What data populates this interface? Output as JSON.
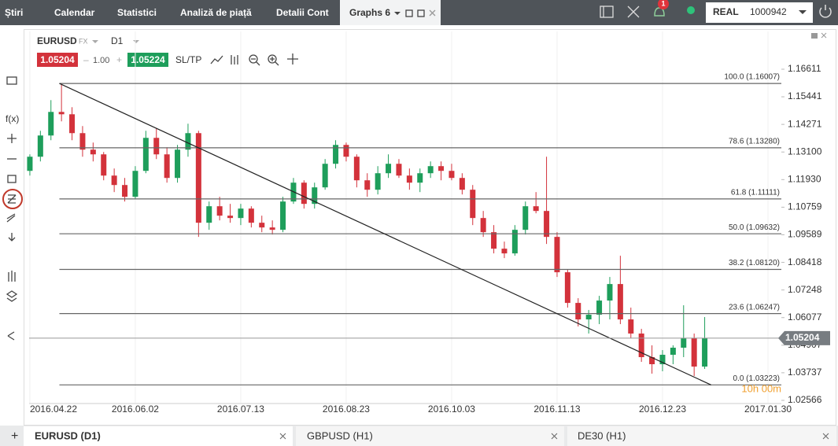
{
  "top_nav": {
    "tabs": [
      "Știri",
      "Calendar",
      "Statistici",
      "Analiză de piață",
      "Detalii Cont"
    ],
    "active_tab": "Graphs 6",
    "notifications": "1",
    "account_type": "REAL",
    "account_id": "1000942"
  },
  "toolbar": {
    "symbol": "EURUSD",
    "market": "FX",
    "interval": "D1",
    "bid": "1.05204",
    "volume": "1.00",
    "ask": "1.05224",
    "sltp": "SL/TP",
    "fx_label": "f(x)"
  },
  "bottom_tabs": [
    "EURUSD (D1)",
    "GBPUSD (H1)",
    "DE30 (H1)"
  ],
  "chart_data": {
    "type": "candlestick",
    "up_color": "#1e9e5b",
    "down_color": "#d3323b",
    "candles": [
      [
        1.123,
        1.13,
        1.121,
        1.129
      ],
      [
        1.129,
        1.14,
        1.127,
        1.138
      ],
      [
        1.138,
        1.153,
        1.136,
        1.148
      ],
      [
        1.148,
        1.1601,
        1.144,
        1.147
      ],
      [
        1.147,
        1.15,
        1.136,
        1.139
      ],
      [
        1.139,
        1.142,
        1.129,
        1.132
      ],
      [
        1.132,
        1.135,
        1.127,
        1.13
      ],
      [
        1.13,
        1.131,
        1.119,
        1.121
      ],
      [
        1.121,
        1.124,
        1.114,
        1.117
      ],
      [
        1.117,
        1.12,
        1.11,
        1.112
      ],
      [
        1.112,
        1.125,
        1.111,
        1.123
      ],
      [
        1.123,
        1.14,
        1.122,
        1.137
      ],
      [
        1.137,
        1.141,
        1.128,
        1.13
      ],
      [
        1.13,
        1.133,
        1.118,
        1.12
      ],
      [
        1.12,
        1.134,
        1.118,
        1.132
      ],
      [
        1.132,
        1.143,
        1.129,
        1.139
      ],
      [
        1.139,
        1.14,
        1.095,
        1.101
      ],
      [
        1.101,
        1.11,
        1.098,
        1.108
      ],
      [
        1.108,
        1.112,
        1.102,
        1.104
      ],
      [
        1.104,
        1.109,
        1.101,
        1.103
      ],
      [
        1.103,
        1.109,
        1.1,
        1.107
      ],
      [
        1.107,
        1.108,
        1.099,
        1.101
      ],
      [
        1.101,
        1.104,
        1.097,
        1.099
      ],
      [
        1.099,
        1.102,
        1.096,
        1.098
      ],
      [
        1.098,
        1.112,
        1.097,
        1.11
      ],
      [
        1.11,
        1.12,
        1.109,
        1.118
      ],
      [
        1.118,
        1.119,
        1.107,
        1.109
      ],
      [
        1.109,
        1.118,
        1.107,
        1.116
      ],
      [
        1.116,
        1.128,
        1.115,
        1.126
      ],
      [
        1.126,
        1.136,
        1.124,
        1.134
      ],
      [
        1.134,
        1.135,
        1.127,
        1.129
      ],
      [
        1.129,
        1.13,
        1.116,
        1.119
      ],
      [
        1.119,
        1.122,
        1.112,
        1.115
      ],
      [
        1.115,
        1.125,
        1.113,
        1.122
      ],
      [
        1.122,
        1.13,
        1.12,
        1.126
      ],
      [
        1.126,
        1.128,
        1.12,
        1.121
      ],
      [
        1.121,
        1.124,
        1.115,
        1.118
      ],
      [
        1.118,
        1.124,
        1.114,
        1.122
      ],
      [
        1.122,
        1.127,
        1.12,
        1.125
      ],
      [
        1.125,
        1.127,
        1.119,
        1.123
      ],
      [
        1.123,
        1.126,
        1.119,
        1.12
      ],
      [
        1.12,
        1.122,
        1.113,
        1.115
      ],
      [
        1.115,
        1.117,
        1.1,
        1.103
      ],
      [
        1.103,
        1.106,
        1.095,
        1.097
      ],
      [
        1.097,
        1.1,
        1.088,
        1.09
      ],
      [
        1.09,
        1.093,
        1.086,
        1.088
      ],
      [
        1.088,
        1.1,
        1.087,
        1.098
      ],
      [
        1.098,
        1.11,
        1.096,
        1.108
      ],
      [
        1.108,
        1.114,
        1.105,
        1.106
      ],
      [
        1.106,
        1.129,
        1.092,
        1.095
      ],
      [
        1.095,
        1.097,
        1.078,
        1.08
      ],
      [
        1.08,
        1.081,
        1.065,
        1.067
      ],
      [
        1.067,
        1.069,
        1.057,
        1.06
      ],
      [
        1.06,
        1.064,
        1.054,
        1.062
      ],
      [
        1.062,
        1.07,
        1.058,
        1.068
      ],
      [
        1.068,
        1.078,
        1.06,
        1.075
      ],
      [
        1.075,
        1.087,
        1.058,
        1.06
      ],
      [
        1.06,
        1.065,
        1.052,
        1.054
      ],
      [
        1.054,
        1.056,
        1.042,
        1.044
      ],
      [
        1.044,
        1.049,
        1.037,
        1.041
      ],
      [
        1.041,
        1.047,
        1.038,
        1.045
      ],
      [
        1.045,
        1.049,
        1.041,
        1.048
      ],
      [
        1.048,
        1.066,
        1.044,
        1.052
      ],
      [
        1.052,
        1.054,
        1.036,
        1.04
      ],
      [
        1.04,
        1.061,
        1.039,
        1.05204
      ]
    ],
    "xlim": [
      -0.07,
      71.27
    ],
    "xticks": [
      {
        "value": 0,
        "label": "2016.04.22"
      },
      {
        "value": 10,
        "label": "2016.06.02"
      },
      {
        "value": 20,
        "label": "2016.07.13"
      },
      {
        "value": 30,
        "label": "2016.08.23"
      },
      {
        "value": 40,
        "label": "2016.10.03"
      },
      {
        "value": 50,
        "label": "2016.11.13"
      },
      {
        "value": 60,
        "label": "2016.12.23"
      },
      {
        "value": 70,
        "label": "2017.01.30"
      }
    ],
    "ylim": [
      1.02466,
      1.18212
    ],
    "yticks": [
      1.16611,
      1.15441,
      1.14271,
      {
        "value": 1.131,
        "label": "1.13100"
      },
      {
        "value": 1.1193,
        "label": "1.11930"
      },
      1.10759,
      1.09589,
      1.08418,
      1.07248,
      1.06077,
      1.04907,
      1.03737,
      1.02566
    ],
    "fib_levels": [
      {
        "value": 1.16007,
        "label": "100.0 (1.16007)"
      },
      {
        "value": 1.1328,
        "label": "78.6 (1.13280)"
      },
      {
        "value": 1.11111,
        "label": "61.8 (1.11111)"
      },
      {
        "value": 1.09632,
        "label": "50.0 (1.09632)"
      },
      {
        "value": 1.0812,
        "label": "38.2 (1.08120)"
      },
      {
        "value": 1.06247,
        "label": "23.6 (1.06247)"
      },
      {
        "value": 1.03223,
        "label": "0.0 (1.03223)"
      }
    ],
    "trend_line": {
      "x": [
        2.8,
        64.6
      ],
      "y": [
        1.16007,
        1.03223
      ]
    },
    "last_price": 1.05204,
    "countdown": "10h 00m"
  }
}
